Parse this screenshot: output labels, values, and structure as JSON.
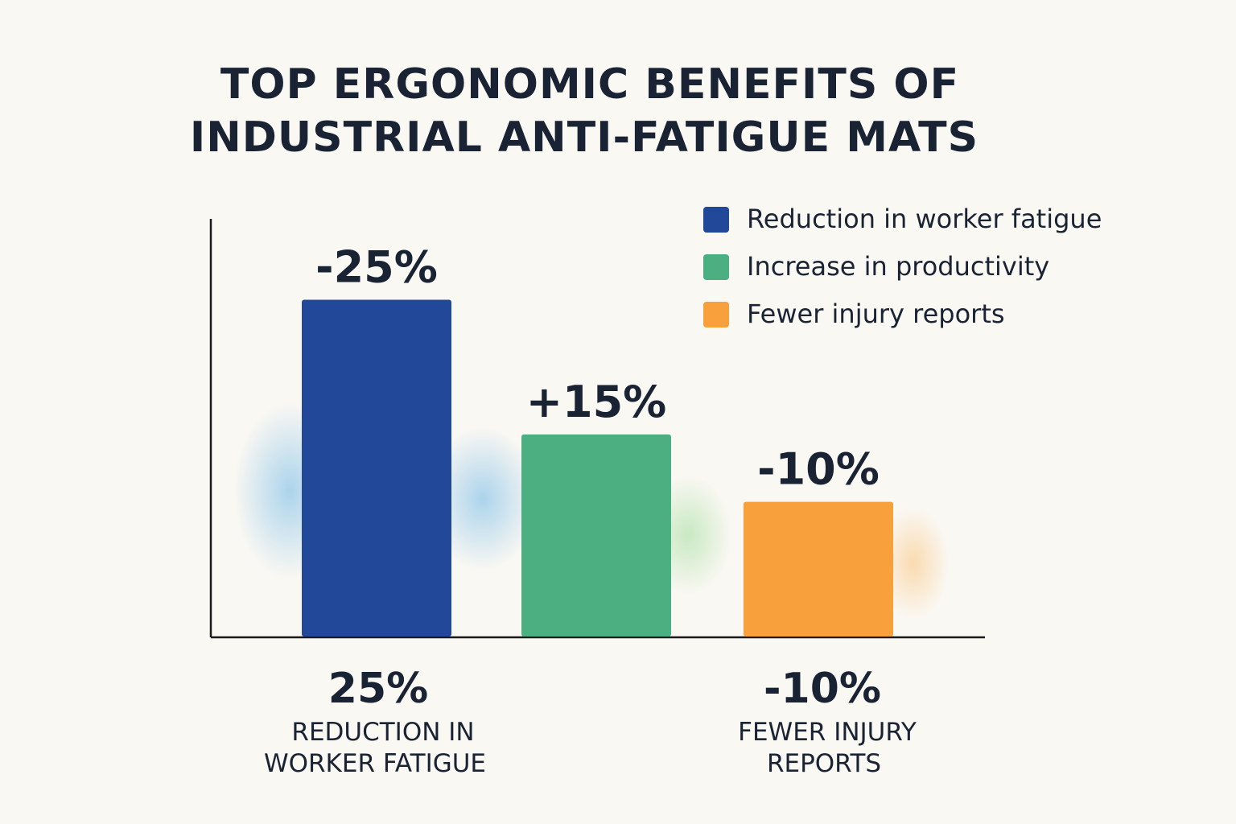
{
  "chart_data": {
    "type": "bar",
    "title_lines": [
      "TOP ERGONOMIC BENEFITS OF",
      "INDUSTRIAL ANTI-FATIGUE MATS"
    ],
    "categories": [
      "Reduction in worker fatigue",
      "Increase in productivity",
      "Fewer injury reports"
    ],
    "values": [
      25,
      15,
      10
    ],
    "data_labels": [
      "-25%",
      "+15%",
      "-10%"
    ],
    "colors": [
      "#22489a",
      "#4caf82",
      "#f7a03c"
    ],
    "ylim": [
      0,
      31
    ],
    "grid": false,
    "legend_position": "top-right",
    "legend": [
      {
        "label": "Reduction in worker fatigue",
        "color": "#22489a"
      },
      {
        "label": "Increase in productivity",
        "color": "#4caf82"
      },
      {
        "label": "Fewer injury reports",
        "color": "#f7a03c"
      }
    ],
    "summaries": [
      {
        "value": "25%",
        "caption_lines": [
          "REDUCTION IN",
          "WORKER FATIGUE"
        ]
      },
      {
        "value": "-10%",
        "caption_lines": [
          "FEWER INJURY",
          "REPORTS"
        ]
      }
    ]
  }
}
